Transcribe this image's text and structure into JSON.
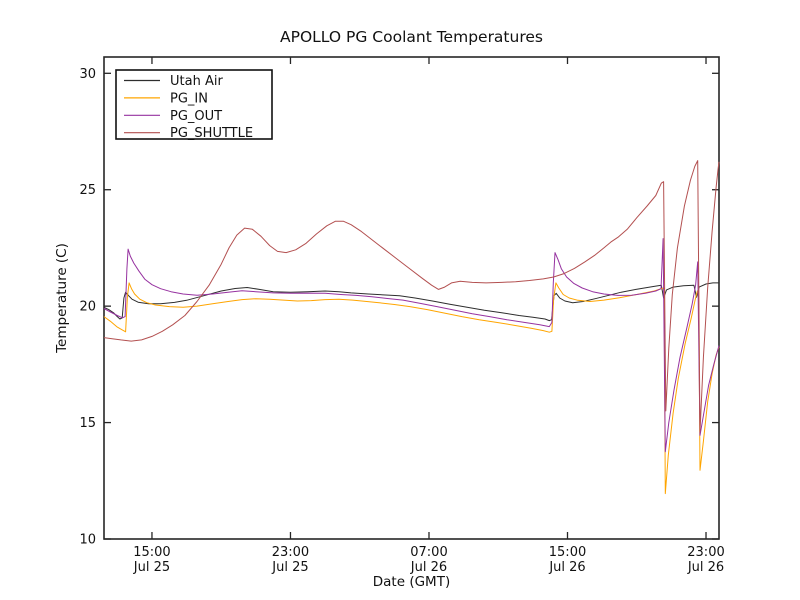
{
  "figure": {
    "background": "#ffffff",
    "frame_color": "#262626"
  },
  "chart_data": {
    "type": "line",
    "title": "APOLLO PG Coolant Temperatures",
    "xlabel": "Date (GMT)",
    "ylabel": "Temperature (C)",
    "grid": false,
    "x_unit_note": "hours since Jul 25 00:00 GMT",
    "xlim": [
      12.23,
      47.75
    ],
    "ylim": [
      10,
      30.7
    ],
    "y_ticks": [
      10,
      15,
      20,
      25,
      30
    ],
    "x_ticks": [
      {
        "v": 15,
        "time": "15:00",
        "date": "Jul 25"
      },
      {
        "v": 23,
        "time": "23:00",
        "date": "Jul 25"
      },
      {
        "v": 31,
        "time": "07:00",
        "date": "Jul 26"
      },
      {
        "v": 39,
        "time": "15:00",
        "date": "Jul 26"
      },
      {
        "v": 47,
        "time": "23:00",
        "date": "Jul 26"
      }
    ],
    "legend": {
      "position": "upper-left",
      "entries": [
        "Utah Air",
        "PG_IN",
        "PG_OUT",
        "PG_SHUTTLE"
      ]
    },
    "series": [
      {
        "name": "Utah Air",
        "color": "#2e2e2e",
        "points": [
          [
            12.23,
            19.95
          ],
          [
            12.5,
            19.85
          ],
          [
            12.8,
            19.7
          ],
          [
            13.0,
            19.55
          ],
          [
            13.15,
            19.45
          ],
          [
            13.28,
            19.5
          ],
          [
            13.38,
            20.35
          ],
          [
            13.48,
            20.6
          ],
          [
            13.65,
            20.45
          ],
          [
            13.85,
            20.3
          ],
          [
            14.2,
            20.17
          ],
          [
            14.8,
            20.1
          ],
          [
            15.5,
            20.1
          ],
          [
            16.3,
            20.16
          ],
          [
            17.0,
            20.25
          ],
          [
            18.0,
            20.45
          ],
          [
            19.0,
            20.65
          ],
          [
            19.8,
            20.76
          ],
          [
            20.5,
            20.8
          ],
          [
            21.2,
            20.72
          ],
          [
            22.0,
            20.62
          ],
          [
            23.0,
            20.6
          ],
          [
            24.0,
            20.62
          ],
          [
            25.0,
            20.65
          ],
          [
            25.8,
            20.62
          ],
          [
            26.5,
            20.57
          ],
          [
            27.5,
            20.52
          ],
          [
            28.5,
            20.48
          ],
          [
            29.3,
            20.45
          ],
          [
            30.2,
            20.35
          ],
          [
            31.2,
            20.22
          ],
          [
            32.2,
            20.08
          ],
          [
            33.2,
            19.95
          ],
          [
            34.2,
            19.82
          ],
          [
            35.2,
            19.72
          ],
          [
            36.2,
            19.6
          ],
          [
            37.0,
            19.52
          ],
          [
            37.7,
            19.45
          ],
          [
            37.95,
            19.38
          ],
          [
            38.08,
            19.42
          ],
          [
            38.22,
            20.45
          ],
          [
            38.35,
            20.55
          ],
          [
            38.55,
            20.35
          ],
          [
            38.85,
            20.22
          ],
          [
            39.3,
            20.15
          ],
          [
            39.9,
            20.2
          ],
          [
            40.6,
            20.32
          ],
          [
            41.3,
            20.45
          ],
          [
            42.1,
            20.6
          ],
          [
            43.0,
            20.73
          ],
          [
            44.0,
            20.85
          ],
          [
            44.42,
            20.9
          ],
          [
            44.55,
            20.35
          ],
          [
            44.72,
            20.7
          ],
          [
            45.1,
            20.82
          ],
          [
            45.7,
            20.88
          ],
          [
            46.3,
            20.9
          ],
          [
            46.45,
            20.38
          ],
          [
            46.6,
            20.82
          ],
          [
            47.0,
            20.95
          ],
          [
            47.4,
            21.0
          ],
          [
            47.75,
            21.0
          ]
        ]
      },
      {
        "name": "PG_IN",
        "color": "#ffa500",
        "points": [
          [
            12.23,
            19.55
          ],
          [
            12.6,
            19.35
          ],
          [
            13.0,
            19.1
          ],
          [
            13.3,
            18.97
          ],
          [
            13.48,
            18.9
          ],
          [
            13.58,
            20.4
          ],
          [
            13.68,
            21.0
          ],
          [
            13.82,
            20.75
          ],
          [
            14.0,
            20.52
          ],
          [
            14.3,
            20.3
          ],
          [
            14.7,
            20.15
          ],
          [
            15.2,
            20.05
          ],
          [
            16.0,
            19.98
          ],
          [
            16.8,
            19.95
          ],
          [
            17.6,
            20.0
          ],
          [
            18.5,
            20.1
          ],
          [
            19.4,
            20.2
          ],
          [
            20.2,
            20.28
          ],
          [
            21.0,
            20.32
          ],
          [
            21.8,
            20.3
          ],
          [
            22.6,
            20.26
          ],
          [
            23.4,
            20.22
          ],
          [
            24.2,
            20.24
          ],
          [
            25.0,
            20.28
          ],
          [
            25.8,
            20.3
          ],
          [
            26.6,
            20.26
          ],
          [
            27.4,
            20.2
          ],
          [
            28.2,
            20.14
          ],
          [
            29.0,
            20.07
          ],
          [
            29.9,
            19.98
          ],
          [
            30.9,
            19.85
          ],
          [
            31.9,
            19.7
          ],
          [
            32.9,
            19.55
          ],
          [
            33.9,
            19.42
          ],
          [
            34.9,
            19.3
          ],
          [
            35.9,
            19.18
          ],
          [
            36.9,
            19.05
          ],
          [
            37.6,
            18.95
          ],
          [
            37.95,
            18.88
          ],
          [
            38.1,
            18.92
          ],
          [
            38.2,
            20.3
          ],
          [
            38.33,
            21.0
          ],
          [
            38.5,
            20.78
          ],
          [
            38.75,
            20.5
          ],
          [
            39.1,
            20.35
          ],
          [
            39.6,
            20.25
          ],
          [
            40.3,
            20.2
          ],
          [
            41.1,
            20.26
          ],
          [
            42.0,
            20.36
          ],
          [
            43.0,
            20.5
          ],
          [
            44.0,
            20.65
          ],
          [
            44.45,
            20.76
          ],
          [
            44.58,
            20.78
          ],
          [
            44.65,
            11.95
          ],
          [
            44.82,
            13.6
          ],
          [
            45.1,
            15.4
          ],
          [
            45.4,
            16.9
          ],
          [
            45.8,
            18.4
          ],
          [
            46.15,
            19.5
          ],
          [
            46.38,
            20.3
          ],
          [
            46.5,
            20.65
          ],
          [
            46.58,
            20.7
          ],
          [
            46.65,
            12.95
          ],
          [
            46.85,
            14.2
          ],
          [
            47.1,
            15.9
          ],
          [
            47.35,
            17.1
          ],
          [
            47.58,
            17.9
          ],
          [
            47.75,
            18.25
          ]
        ]
      },
      {
        "name": "PG_OUT",
        "color": "#9632a0",
        "points": [
          [
            12.23,
            19.9
          ],
          [
            12.6,
            19.75
          ],
          [
            13.0,
            19.6
          ],
          [
            13.3,
            19.5
          ],
          [
            13.45,
            19.55
          ],
          [
            13.55,
            21.6
          ],
          [
            13.62,
            22.45
          ],
          [
            13.75,
            22.15
          ],
          [
            13.95,
            21.85
          ],
          [
            14.25,
            21.5
          ],
          [
            14.6,
            21.15
          ],
          [
            15.0,
            20.92
          ],
          [
            15.5,
            20.75
          ],
          [
            16.1,
            20.62
          ],
          [
            16.8,
            20.52
          ],
          [
            17.6,
            20.47
          ],
          [
            18.5,
            20.52
          ],
          [
            19.4,
            20.6
          ],
          [
            20.2,
            20.66
          ],
          [
            21.0,
            20.62
          ],
          [
            22.0,
            20.57
          ],
          [
            23.0,
            20.55
          ],
          [
            24.0,
            20.56
          ],
          [
            25.0,
            20.55
          ],
          [
            25.9,
            20.5
          ],
          [
            26.8,
            20.46
          ],
          [
            27.7,
            20.4
          ],
          [
            28.6,
            20.33
          ],
          [
            29.5,
            20.26
          ],
          [
            30.5,
            20.12
          ],
          [
            31.5,
            19.97
          ],
          [
            32.5,
            19.82
          ],
          [
            33.5,
            19.67
          ],
          [
            34.5,
            19.55
          ],
          [
            35.5,
            19.42
          ],
          [
            36.5,
            19.3
          ],
          [
            37.4,
            19.2
          ],
          [
            37.95,
            19.12
          ],
          [
            38.1,
            19.3
          ],
          [
            38.18,
            21.0
          ],
          [
            38.28,
            22.3
          ],
          [
            38.45,
            22.0
          ],
          [
            38.65,
            21.6
          ],
          [
            38.95,
            21.25
          ],
          [
            39.35,
            20.98
          ],
          [
            39.85,
            20.78
          ],
          [
            40.45,
            20.62
          ],
          [
            41.1,
            20.52
          ],
          [
            41.9,
            20.46
          ],
          [
            42.7,
            20.47
          ],
          [
            43.5,
            20.55
          ],
          [
            44.1,
            20.65
          ],
          [
            44.4,
            20.75
          ],
          [
            44.52,
            22.9
          ],
          [
            44.65,
            13.75
          ],
          [
            44.85,
            15.0
          ],
          [
            45.15,
            16.4
          ],
          [
            45.5,
            17.8
          ],
          [
            45.9,
            19.1
          ],
          [
            46.2,
            20.1
          ],
          [
            46.4,
            20.9
          ],
          [
            46.52,
            21.9
          ],
          [
            46.65,
            14.45
          ],
          [
            46.85,
            15.3
          ],
          [
            47.15,
            16.6
          ],
          [
            47.45,
            17.5
          ],
          [
            47.65,
            18.05
          ],
          [
            47.75,
            18.3
          ]
        ]
      },
      {
        "name": "PG_SHUTTLE",
        "color": "#b35050",
        "points": [
          [
            12.23,
            18.65
          ],
          [
            12.7,
            18.6
          ],
          [
            13.2,
            18.55
          ],
          [
            13.8,
            18.5
          ],
          [
            14.4,
            18.55
          ],
          [
            15.0,
            18.7
          ],
          [
            15.6,
            18.92
          ],
          [
            16.2,
            19.2
          ],
          [
            16.9,
            19.6
          ],
          [
            17.6,
            20.2
          ],
          [
            18.3,
            20.9
          ],
          [
            19.0,
            21.8
          ],
          [
            19.45,
            22.5
          ],
          [
            19.9,
            23.05
          ],
          [
            20.35,
            23.35
          ],
          [
            20.8,
            23.3
          ],
          [
            21.3,
            23.0
          ],
          [
            21.8,
            22.6
          ],
          [
            22.25,
            22.35
          ],
          [
            22.75,
            22.3
          ],
          [
            23.3,
            22.42
          ],
          [
            23.9,
            22.7
          ],
          [
            24.5,
            23.1
          ],
          [
            25.1,
            23.45
          ],
          [
            25.6,
            23.65
          ],
          [
            26.05,
            23.65
          ],
          [
            26.5,
            23.5
          ],
          [
            27.1,
            23.2
          ],
          [
            27.8,
            22.8
          ],
          [
            28.5,
            22.4
          ],
          [
            29.2,
            22.0
          ],
          [
            29.9,
            21.6
          ],
          [
            30.6,
            21.2
          ],
          [
            31.15,
            20.9
          ],
          [
            31.55,
            20.72
          ],
          [
            31.9,
            20.82
          ],
          [
            32.3,
            21.0
          ],
          [
            32.8,
            21.07
          ],
          [
            33.5,
            21.02
          ],
          [
            34.3,
            21.0
          ],
          [
            35.2,
            21.02
          ],
          [
            36.0,
            21.05
          ],
          [
            36.8,
            21.1
          ],
          [
            37.6,
            21.17
          ],
          [
            38.2,
            21.25
          ],
          [
            38.8,
            21.4
          ],
          [
            39.4,
            21.62
          ],
          [
            40.0,
            21.9
          ],
          [
            40.6,
            22.2
          ],
          [
            41.1,
            22.5
          ],
          [
            41.5,
            22.75
          ],
          [
            41.95,
            22.98
          ],
          [
            42.45,
            23.3
          ],
          [
            43.0,
            23.8
          ],
          [
            43.6,
            24.3
          ],
          [
            44.1,
            24.75
          ],
          [
            44.42,
            25.28
          ],
          [
            44.55,
            25.35
          ],
          [
            44.68,
            15.5
          ],
          [
            44.85,
            18.2
          ],
          [
            45.05,
            20.5
          ],
          [
            45.35,
            22.5
          ],
          [
            45.75,
            24.3
          ],
          [
            46.1,
            25.4
          ],
          [
            46.35,
            26.0
          ],
          [
            46.52,
            26.25
          ],
          [
            46.65,
            14.6
          ],
          [
            46.85,
            17.8
          ],
          [
            47.1,
            20.8
          ],
          [
            47.35,
            23.2
          ],
          [
            47.58,
            25.1
          ],
          [
            47.7,
            25.9
          ],
          [
            47.75,
            26.2
          ]
        ]
      }
    ]
  }
}
